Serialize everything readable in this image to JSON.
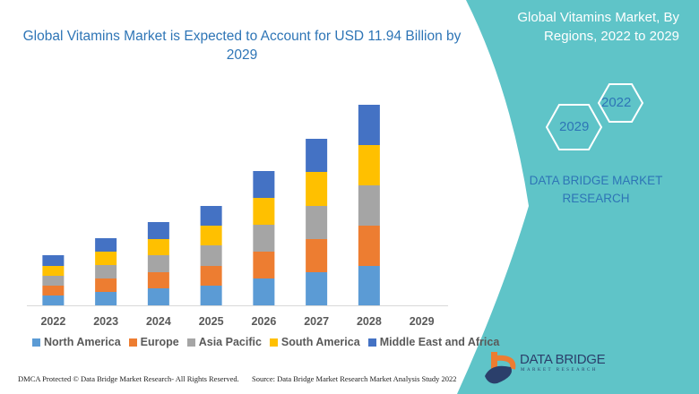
{
  "header": {
    "title": "Global Vitamins Market is Expected to Account for USD 11.94 Billion by 2029",
    "panel_title": "Global Vitamins Market, By Regions, 2022 to 2029"
  },
  "hexagons": {
    "left": "2029",
    "right": "2022"
  },
  "brand_text": "DATA BRIDGE MARKET RESEARCH",
  "logo": {
    "name": "DATA BRIDGE",
    "sub": "MARKET RESEARCH"
  },
  "footer": {
    "left": "DMCA Protected © Data Bridge Market Research- All Rights Reserved.",
    "right": "Source: Data Bridge Market Research Market Analysis Study 2022"
  },
  "colors": {
    "panel": "#5fc4c8",
    "accent": "#2e75b6"
  },
  "chart_data": {
    "type": "bar",
    "stacked": true,
    "categories": [
      "2022",
      "2023",
      "2024",
      "2025",
      "2026",
      "2027",
      "2028",
      "2029"
    ],
    "series": [
      {
        "name": "North America",
        "color": "#5b9bd5",
        "values": [
          11,
          15,
          19,
          22,
          30,
          37,
          44,
          0
        ]
      },
      {
        "name": "Europe",
        "color": "#ed7d31",
        "values": [
          11,
          15,
          18,
          22,
          30,
          37,
          45,
          0
        ]
      },
      {
        "name": "Asia Pacific",
        "color": "#a5a5a5",
        "values": [
          11,
          15,
          19,
          23,
          30,
          37,
          45,
          0
        ]
      },
      {
        "name": "South America",
        "color": "#ffc000",
        "values": [
          11,
          15,
          18,
          22,
          30,
          38,
          45,
          0
        ]
      },
      {
        "name": "Middle East and Africa",
        "color": "#4472c4",
        "values": [
          12,
          15,
          19,
          22,
          30,
          37,
          45,
          0
        ]
      }
    ],
    "ylim": [
      0,
      224
    ],
    "y_axis_shown": false,
    "grid": false,
    "legend": "bottom"
  }
}
